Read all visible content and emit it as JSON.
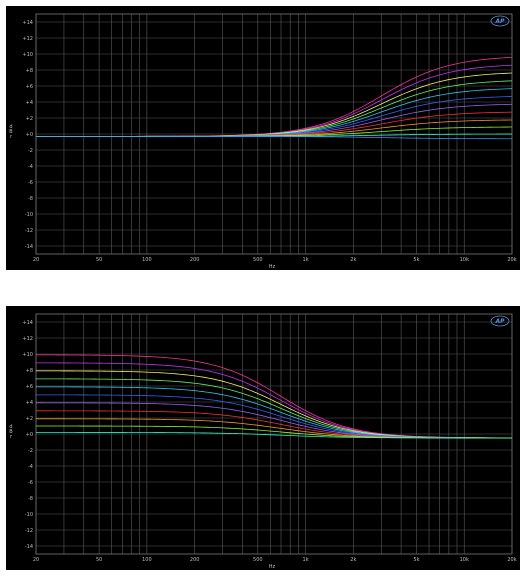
{
  "chart_data": [
    {
      "type": "line",
      "xlabel": "Hz",
      "ylabel": "d B r",
      "xscale": "log",
      "xlim": [
        20,
        20000
      ],
      "ylim": [
        -15,
        15
      ],
      "grid": true,
      "logo": "AP",
      "colors": {
        "background": "#000000",
        "grid": "#5a5a5a",
        "text": "#bfbfbf"
      },
      "x_ticks": [
        {
          "value": 20,
          "label": "20"
        },
        {
          "value": 50,
          "label": "50"
        },
        {
          "value": 100,
          "label": "100"
        },
        {
          "value": 200,
          "label": "200"
        },
        {
          "value": 500,
          "label": "500"
        },
        {
          "value": 1000,
          "label": "1k"
        },
        {
          "value": 2000,
          "label": "2k"
        },
        {
          "value": 5000,
          "label": "5k"
        },
        {
          "value": 10000,
          "label": "10k"
        },
        {
          "value": 20000,
          "label": "20k"
        }
      ],
      "y_ticks": [
        {
          "value": 14,
          "label": "+14"
        },
        {
          "value": 12,
          "label": "+12"
        },
        {
          "value": 10,
          "label": "+10"
        },
        {
          "value": 8,
          "label": "+8"
        },
        {
          "value": 6,
          "label": "+6"
        },
        {
          "value": 4,
          "label": "+4"
        },
        {
          "value": 2,
          "label": "+2"
        },
        {
          "value": 0,
          "label": "+0"
        },
        {
          "value": -2,
          "label": "-2"
        },
        {
          "value": -4,
          "label": "-4"
        },
        {
          "value": -6,
          "label": "-6"
        },
        {
          "value": -8,
          "label": "-8"
        },
        {
          "value": -10,
          "label": "-10"
        },
        {
          "value": -12,
          "label": "-12"
        },
        {
          "value": -14,
          "label": "-14"
        }
      ],
      "curve": {
        "kind": "high-shelf",
        "corner_hz": 3000,
        "low_offset_db": -0.3
      },
      "series": [
        {
          "gain_db": 9.8,
          "color": "#ff3399"
        },
        {
          "gain_db": 8.8,
          "color": "#cc33ff"
        },
        {
          "gain_db": 7.8,
          "color": "#ffff66"
        },
        {
          "gain_db": 6.8,
          "color": "#66ff66"
        },
        {
          "gain_db": 5.8,
          "color": "#33ccff"
        },
        {
          "gain_db": 4.8,
          "color": "#3366ff"
        },
        {
          "gain_db": 3.8,
          "color": "#9966ff"
        },
        {
          "gain_db": 2.8,
          "color": "#ff3333"
        },
        {
          "gain_db": 1.8,
          "color": "#ff9933"
        },
        {
          "gain_db": 0.9,
          "color": "#99ff33"
        },
        {
          "gain_db": 0.0,
          "color": "#33ffcc"
        },
        {
          "gain_db": -0.6,
          "color": "#3399ff"
        }
      ]
    },
    {
      "type": "line",
      "xlabel": "Hz",
      "ylabel": "d B r",
      "xscale": "log",
      "xlim": [
        20,
        20000
      ],
      "ylim": [
        -15,
        15
      ],
      "grid": true,
      "logo": "AP",
      "colors": {
        "background": "#000000",
        "grid": "#5a5a5a",
        "text": "#bfbfbf"
      },
      "x_ticks": [
        {
          "value": 20,
          "label": "20"
        },
        {
          "value": 50,
          "label": "50"
        },
        {
          "value": 100,
          "label": "100"
        },
        {
          "value": 200,
          "label": "200"
        },
        {
          "value": 500,
          "label": "500"
        },
        {
          "value": 1000,
          "label": "1k"
        },
        {
          "value": 2000,
          "label": "2k"
        },
        {
          "value": 5000,
          "label": "5k"
        },
        {
          "value": 10000,
          "label": "10k"
        },
        {
          "value": 20000,
          "label": "20k"
        }
      ],
      "y_ticks": [
        {
          "value": 14,
          "label": "+14"
        },
        {
          "value": 12,
          "label": "+12"
        },
        {
          "value": 10,
          "label": "+10"
        },
        {
          "value": 8,
          "label": "+8"
        },
        {
          "value": 6,
          "label": "+6"
        },
        {
          "value": 4,
          "label": "+4"
        },
        {
          "value": 2,
          "label": "+2"
        },
        {
          "value": 0,
          "label": "+0"
        },
        {
          "value": -2,
          "label": "-2"
        },
        {
          "value": -4,
          "label": "-4"
        },
        {
          "value": -6,
          "label": "-6"
        },
        {
          "value": -8,
          "label": "-8"
        },
        {
          "value": -10,
          "label": "-10"
        },
        {
          "value": -12,
          "label": "-12"
        },
        {
          "value": -14,
          "label": "-14"
        }
      ],
      "curve": {
        "kind": "low-shelf",
        "corner_hz": 700,
        "high_offset_db": -0.5
      },
      "series": [
        {
          "gain_db": 9.9,
          "color": "#ff3399"
        },
        {
          "gain_db": 8.9,
          "color": "#cc33ff"
        },
        {
          "gain_db": 7.9,
          "color": "#ffff66"
        },
        {
          "gain_db": 6.9,
          "color": "#66ff66"
        },
        {
          "gain_db": 5.9,
          "color": "#33ccff"
        },
        {
          "gain_db": 4.9,
          "color": "#3366ff"
        },
        {
          "gain_db": 3.9,
          "color": "#9966ff"
        },
        {
          "gain_db": 2.9,
          "color": "#ff3333"
        },
        {
          "gain_db": 1.9,
          "color": "#ff9933"
        },
        {
          "gain_db": 1.0,
          "color": "#99ff33"
        },
        {
          "gain_db": 0.2,
          "color": "#33ffcc"
        }
      ]
    }
  ]
}
